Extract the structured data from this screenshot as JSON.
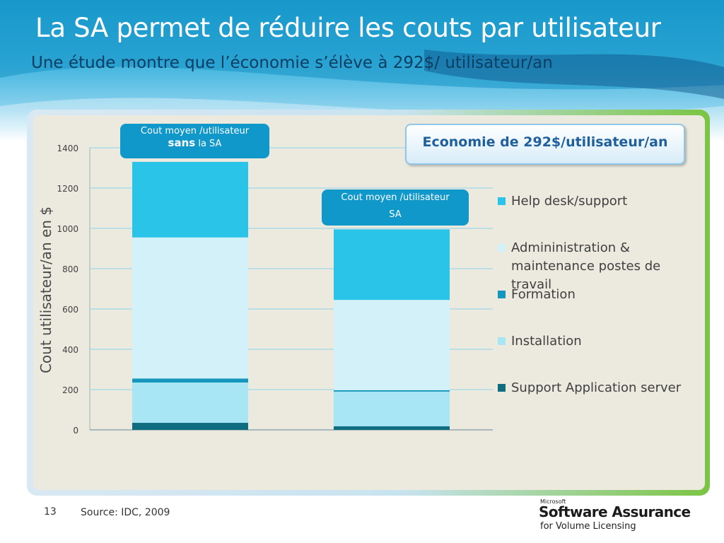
{
  "slide": {
    "title": "La SA permet de réduire les couts par utilisateur",
    "subtitle": "Une étude montre que l’économie s’élève à 292$/ utilisateur/an",
    "page_number": "13",
    "source": "Source: IDC, 2009"
  },
  "callouts": {
    "without_sa_line1": "Cout moyen /utilisateur",
    "without_sa_bold": "sans",
    "without_sa_rest": "la SA",
    "with_sa_line1": "Cout moyen /utilisateur",
    "with_sa_line2": "SA"
  },
  "savings_box": "Economie de 292$/utilisateur/an",
  "logo": {
    "small": "Microsoft",
    "main": "Software Assurance",
    "sub": "for Volume Licensing"
  },
  "colors": {
    "Help desk/support": "#29c4e8",
    "Admininistration & maintenance postes de travail": "#d3f1f8",
    "Formation": "#1597bd",
    "Installation": "#a9e6f5",
    "Support Application server": "#106c80"
  },
  "chart_data": {
    "type": "bar",
    "stacked": true,
    "title": "",
    "xlabel": "",
    "ylabel": "Cout utilisateur/an en $",
    "ylim": [
      0,
      1400
    ],
    "yticks": [
      0,
      200,
      400,
      600,
      800,
      1000,
      1200,
      1400
    ],
    "grid": true,
    "legend_position": "right",
    "categories": [
      "Sans SA",
      "Avec SA"
    ],
    "series": [
      {
        "name": "Support Application server",
        "values": [
          35,
          18
        ]
      },
      {
        "name": "Installation",
        "values": [
          200,
          172
        ]
      },
      {
        "name": "Formation",
        "values": [
          20,
          7
        ]
      },
      {
        "name": "Admininistration & maintenance postes de travail",
        "values": [
          700,
          448
        ]
      },
      {
        "name": "Help desk/support",
        "values": [
          375,
          350
        ]
      }
    ],
    "legend_order": [
      "Help desk/support",
      "Admininistration & maintenance postes de travail",
      "Formation",
      "Installation",
      "Support Application server"
    ]
  }
}
